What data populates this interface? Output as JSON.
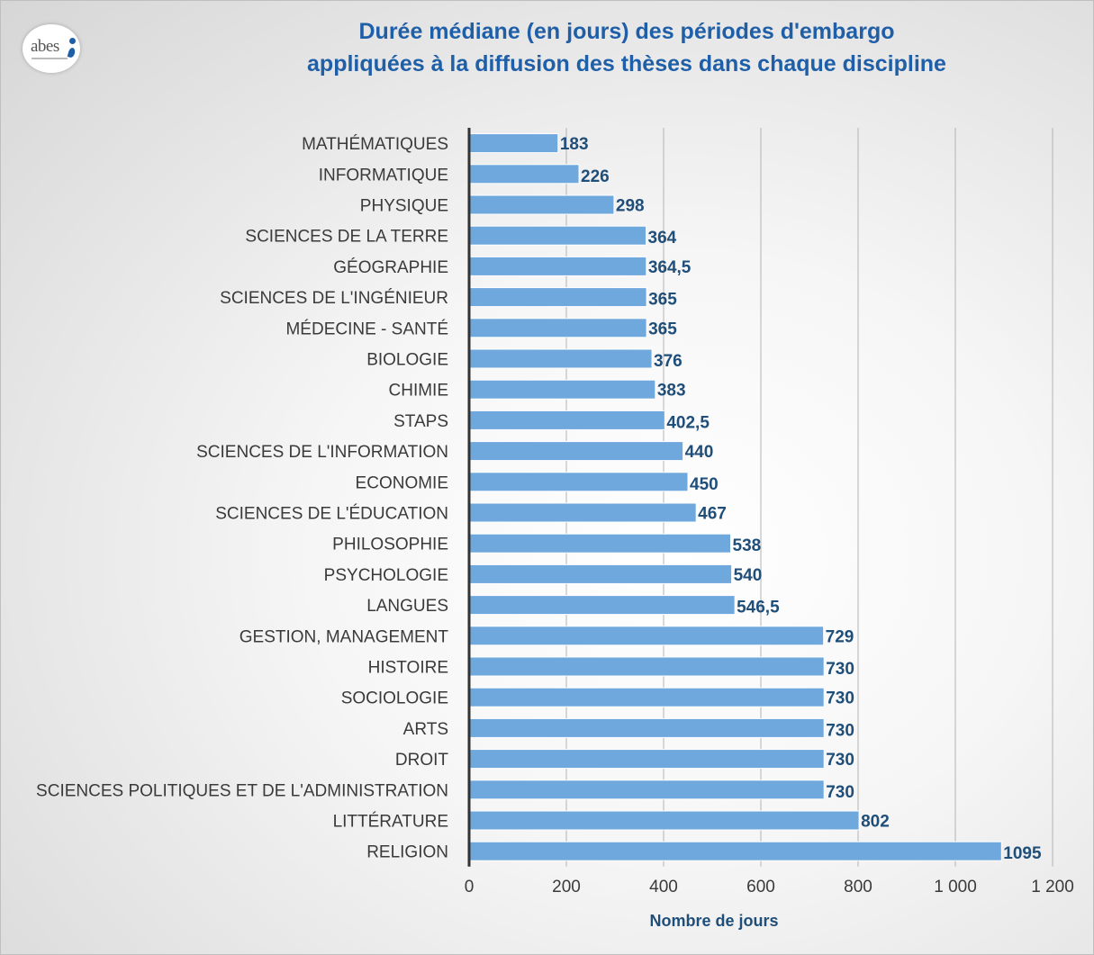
{
  "logo": {
    "text": "abes"
  },
  "title_lines": [
    "Durée médiane (en jours) des périodes d'embargo",
    "appliquées à la diffusion des thèses dans chaque discipline"
  ],
  "colors": {
    "bar": "#6fa8dc",
    "bar_border": "#ffffff",
    "label": "#1f4e79",
    "title": "#1f5fa8",
    "grid": "#b3b3b3",
    "axis": "#333333",
    "text": "#3a3a3a"
  },
  "chart_data": {
    "type": "bar",
    "orientation": "horizontal",
    "title": "Durée médiane (en jours) des périodes d'embargo appliquées à la diffusion des thèses dans chaque discipline",
    "xlabel": "Nombre de jours",
    "ylabel": "",
    "xlim": [
      0,
      1200
    ],
    "xticks": [
      "0",
      "200",
      "400",
      "600",
      "800",
      "1 000",
      "1 200"
    ],
    "grid": "vertical",
    "legend": "none",
    "categories": [
      "MATHÉMATIQUES",
      "INFORMATIQUE",
      "PHYSIQUE",
      "SCIENCES DE LA TERRE",
      "GÉOGRAPHIE",
      "SCIENCES DE L'INGÉNIEUR",
      "MÉDECINE - SANTÉ",
      "BIOLOGIE",
      "CHIMIE",
      "STAPS",
      "SCIENCES DE L'INFORMATION",
      "ECONOMIE",
      "SCIENCES DE L'ÉDUCATION",
      "PHILOSOPHIE",
      "PSYCHOLOGIE",
      "LANGUES",
      "GESTION, MANAGEMENT",
      "HISTOIRE",
      "SOCIOLOGIE",
      "ARTS",
      "DROIT",
      "SCIENCES POLITIQUES ET DE L'ADMINISTRATION",
      "LITTÉRATURE",
      "RELIGION"
    ],
    "values": [
      183,
      226,
      298,
      364,
      364.5,
      365,
      365,
      376,
      383,
      402.5,
      440,
      450,
      467,
      538,
      540,
      546.5,
      729,
      730,
      730,
      730,
      730,
      730,
      802,
      1095
    ],
    "data_labels": [
      "183",
      "226",
      "298",
      "364",
      "364,5",
      "365",
      "365",
      "376",
      "383",
      "402,5",
      "440",
      "450",
      "467",
      "538",
      "540",
      "546,5",
      "729",
      "730",
      "730",
      "730",
      "730",
      "730",
      "802",
      "1095"
    ]
  }
}
